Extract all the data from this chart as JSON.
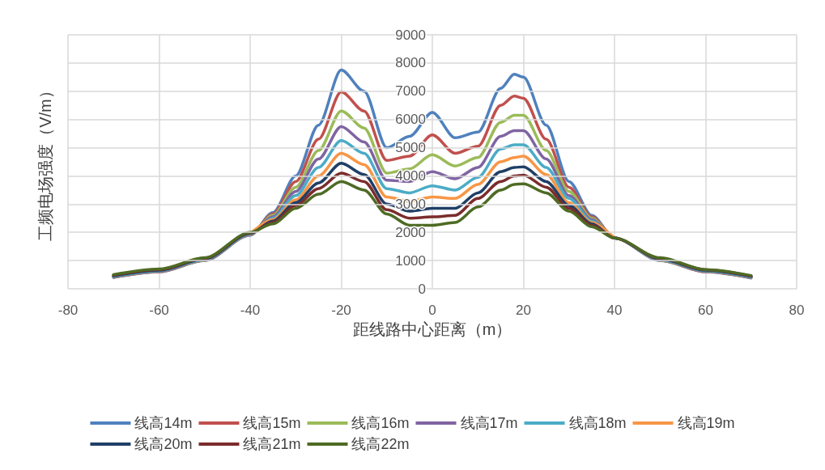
{
  "chart_data": {
    "type": "line",
    "xlabel": "距线路中心距离（m）",
    "ylabel": "工频电场强度（V/m）",
    "x": [
      -70,
      -60,
      -50,
      -40,
      -35,
      -30,
      -25,
      -20,
      -15,
      -10,
      -5,
      0,
      5,
      10,
      15,
      18,
      20,
      25,
      30,
      35,
      40,
      50,
      60,
      70
    ],
    "xlim": [
      -80,
      80
    ],
    "xticks": [
      -80,
      -60,
      -40,
      -20,
      0,
      20,
      40,
      60,
      80
    ],
    "ylim": [
      0,
      9000
    ],
    "yticks": [
      0,
      1000,
      2000,
      3000,
      4000,
      5000,
      6000,
      7000,
      8000,
      9000
    ],
    "grid": true,
    "legend": "bottom",
    "marker": "none",
    "line_style": "solid",
    "series": [
      {
        "name": "线高14m",
        "color": "#4f81bd",
        "values": [
          400,
          600,
          1000,
          1900,
          2700,
          4000,
          5800,
          7750,
          7000,
          5000,
          5400,
          6250,
          5350,
          5550,
          7100,
          7600,
          7500,
          5800,
          3800,
          2600,
          1800,
          1000,
          600,
          380
        ]
      },
      {
        "name": "线高15m",
        "color": "#c0504d",
        "values": [
          410,
          610,
          1010,
          1910,
          2650,
          3800,
          5300,
          6980,
          6300,
          4550,
          4700,
          5450,
          4800,
          5050,
          6500,
          6830,
          6750,
          5300,
          3600,
          2550,
          1800,
          1010,
          610,
          390
        ]
      },
      {
        "name": "线高16m",
        "color": "#9bbb59",
        "values": [
          420,
          620,
          1020,
          1920,
          2600,
          3600,
          4900,
          6300,
          5700,
          4100,
          4250,
          4750,
          4350,
          4650,
          5900,
          6150,
          6150,
          4900,
          3450,
          2500,
          1800,
          1020,
          620,
          400
        ]
      },
      {
        "name": "线高17m",
        "color": "#8064a2",
        "values": [
          430,
          630,
          1030,
          1930,
          2550,
          3450,
          4600,
          5750,
          5200,
          3850,
          3800,
          4150,
          3900,
          4300,
          5400,
          5600,
          5600,
          4600,
          3300,
          2450,
          1800,
          1030,
          630,
          410
        ]
      },
      {
        "name": "线高18m",
        "color": "#4bacc6",
        "values": [
          440,
          640,
          1040,
          1940,
          2500,
          3300,
          4300,
          5250,
          4800,
          3550,
          3400,
          3650,
          3500,
          3950,
          4950,
          5100,
          5100,
          4300,
          3200,
          2400,
          1800,
          1040,
          640,
          420
        ]
      },
      {
        "name": "线高19m",
        "color": "#f79646",
        "values": [
          null,
          null,
          null,
          1950,
          2450,
          3150,
          4000,
          4800,
          4400,
          3250,
          3100,
          3250,
          3200,
          3700,
          4500,
          4650,
          4700,
          4050,
          3050,
          2350,
          1800,
          null,
          null,
          null
        ]
      },
      {
        "name": "线高20m",
        "color": "#1f3f66",
        "values": [
          460,
          660,
          1060,
          1960,
          2400,
          3050,
          3750,
          4450,
          4050,
          3000,
          2750,
          2850,
          2850,
          3400,
          4150,
          4300,
          4320,
          3800,
          2950,
          2300,
          1800,
          1060,
          660,
          440
        ]
      },
      {
        "name": "线高21m",
        "color": "#7b2c2c",
        "values": [
          480,
          680,
          1080,
          1980,
          2350,
          2950,
          3550,
          4100,
          3800,
          2800,
          2500,
          2550,
          2600,
          3200,
          3800,
          4000,
          4030,
          3600,
          2850,
          2250,
          1800,
          1080,
          670,
          450
        ]
      },
      {
        "name": "线高22m",
        "color": "#4e6b24",
        "values": [
          500,
          700,
          1100,
          2000,
          2300,
          2850,
          3350,
          3800,
          3500,
          2650,
          2250,
          2250,
          2350,
          2900,
          3500,
          3700,
          3720,
          3400,
          2750,
          2200,
          1800,
          1100,
          680,
          470
        ]
      }
    ]
  }
}
